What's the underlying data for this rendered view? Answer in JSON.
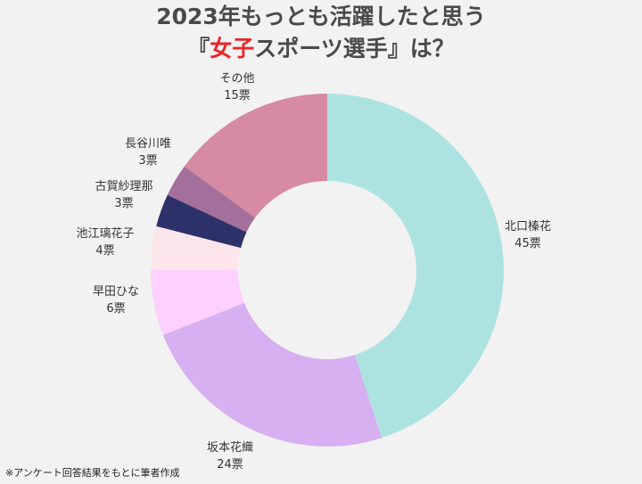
{
  "title": {
    "line1": "2023年もっとも活躍したと思う",
    "line2_open": "『",
    "line2_highlight": "女子",
    "line2_rest": "スポーツ選手』は？",
    "highlight_color": "#e8262b"
  },
  "chart_data": {
    "type": "pie",
    "donut": true,
    "title": "2023年もっとも活躍したと思う『女子スポーツ選手』は？",
    "unit": "票",
    "slices": [
      {
        "name": "北口榛花",
        "value": 45,
        "label": "45票",
        "color": "#ace3e1"
      },
      {
        "name": "坂本花織",
        "value": 24,
        "label": "24票",
        "color": "#d7b0f1"
      },
      {
        "name": "早田ひな",
        "value": 6,
        "label": "6票",
        "color": "#fdd0fd"
      },
      {
        "name": "池江璃花子",
        "value": 4,
        "label": "4票",
        "color": "#fde6eb"
      },
      {
        "name": "古賀紗理那",
        "value": 3,
        "label": "3票",
        "color": "#2d3169"
      },
      {
        "name": "長谷川唯",
        "value": 3,
        "label": "3票",
        "color": "#a56f9c"
      },
      {
        "name": "その他",
        "value": 15,
        "label": "15票",
        "color": "#d68aa3"
      }
    ]
  },
  "footnote": "※アンケート回答結果をもとに筆者作成"
}
